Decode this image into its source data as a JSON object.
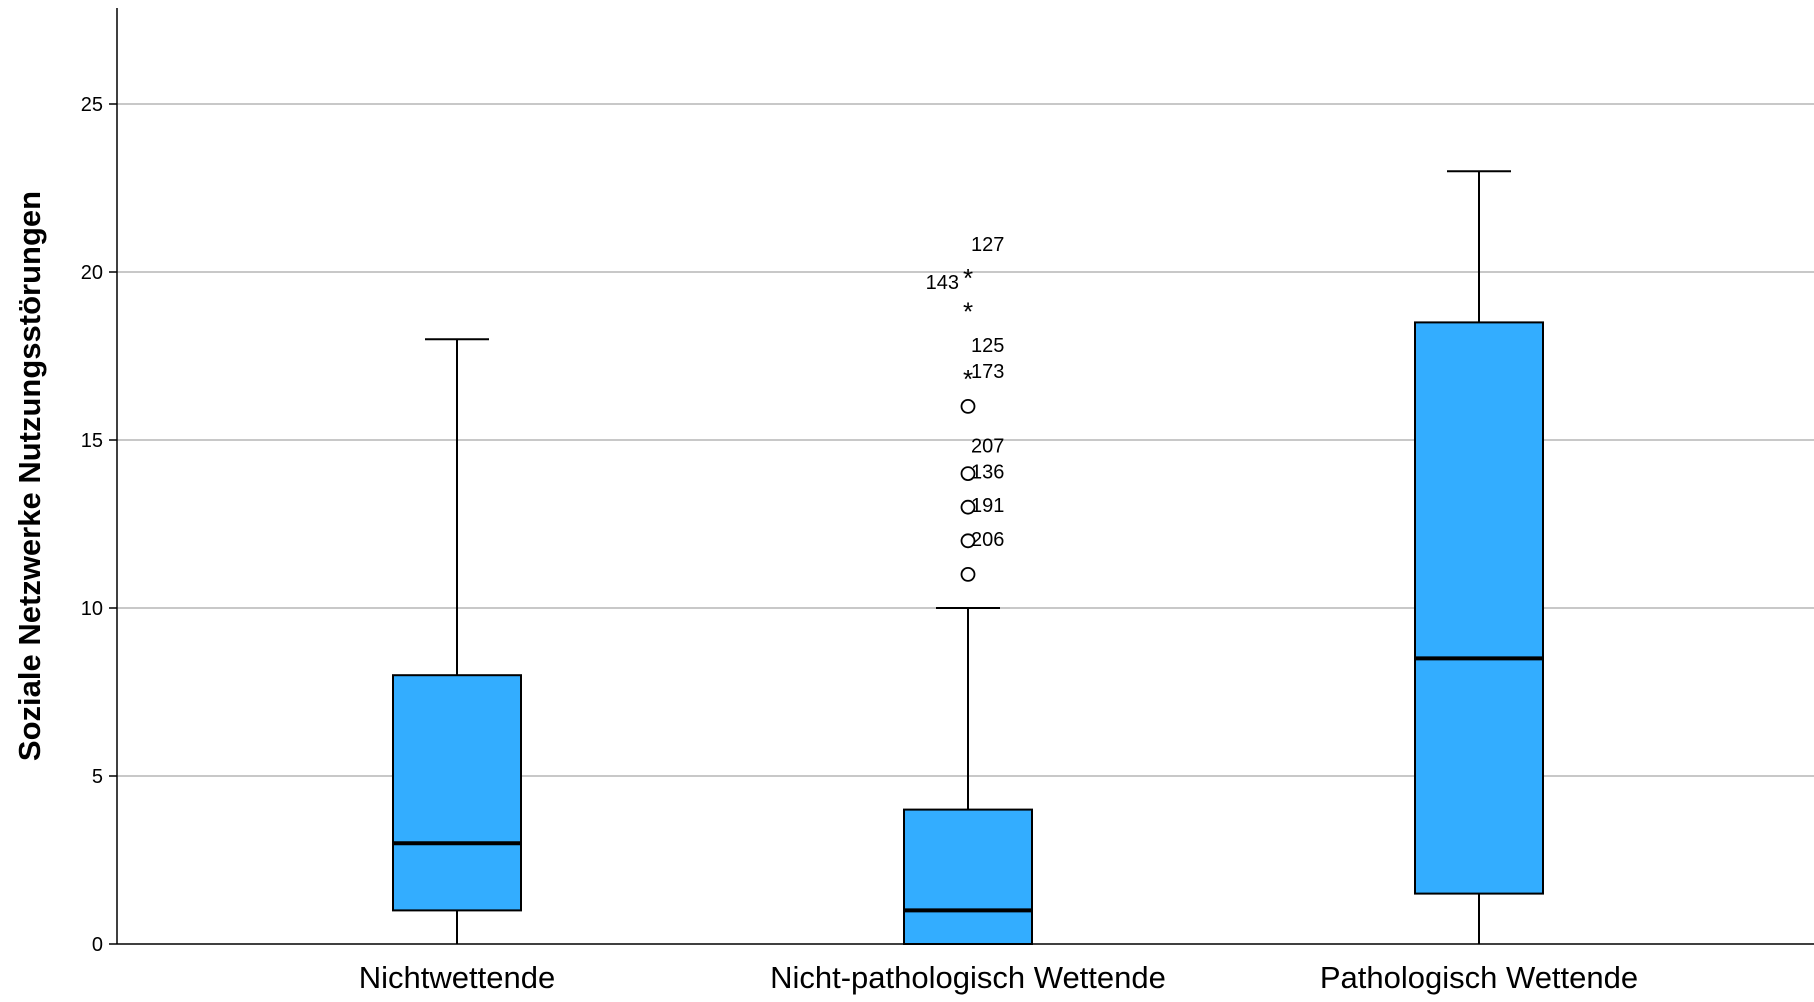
{
  "chart_data": {
    "type": "boxplot",
    "ylabel": "Soziale Netzwerke Nutzungsstörungen",
    "xlabel": "",
    "ylim": [
      0,
      28
    ],
    "yticks": [
      0,
      5,
      10,
      15,
      20,
      25
    ],
    "grid": true,
    "box_color": "#33adff",
    "categories": [
      "Nichtwettende",
      "Nicht-pathologisch Wettende",
      "Pathologisch Wettende"
    ],
    "boxes": [
      {
        "category": "Nichtwettende",
        "whisker_low": 0,
        "q1": 1,
        "median": 3,
        "q3": 8,
        "whisker_high": 18,
        "outliers": []
      },
      {
        "category": "Nicht-pathologisch Wettende",
        "whisker_low": 0,
        "q1": 0,
        "median": 1,
        "q3": 4,
        "whisker_high": 10,
        "outliers": [
          {
            "value": 20,
            "marker": "star",
            "label": "127"
          },
          {
            "value": 20,
            "marker": "star",
            "label": "143"
          },
          {
            "value": 19,
            "marker": "star",
            "label": ""
          },
          {
            "value": 17,
            "marker": "star",
            "label": "173"
          },
          {
            "value": 17,
            "marker": "star",
            "label": "125"
          },
          {
            "value": 16,
            "marker": "circle",
            "label": ""
          },
          {
            "value": 14,
            "marker": "circle",
            "label": "136"
          },
          {
            "value": 14,
            "marker": "circle",
            "label": "207"
          },
          {
            "value": 13,
            "marker": "circle",
            "label": "191"
          },
          {
            "value": 12,
            "marker": "circle",
            "label": "206"
          },
          {
            "value": 11,
            "marker": "circle",
            "label": ""
          }
        ]
      },
      {
        "category": "Pathologisch Wettende",
        "whisker_low": 0,
        "q1": 1.5,
        "median": 8.5,
        "q3": 18.5,
        "whisker_high": 23,
        "outliers": []
      }
    ]
  }
}
